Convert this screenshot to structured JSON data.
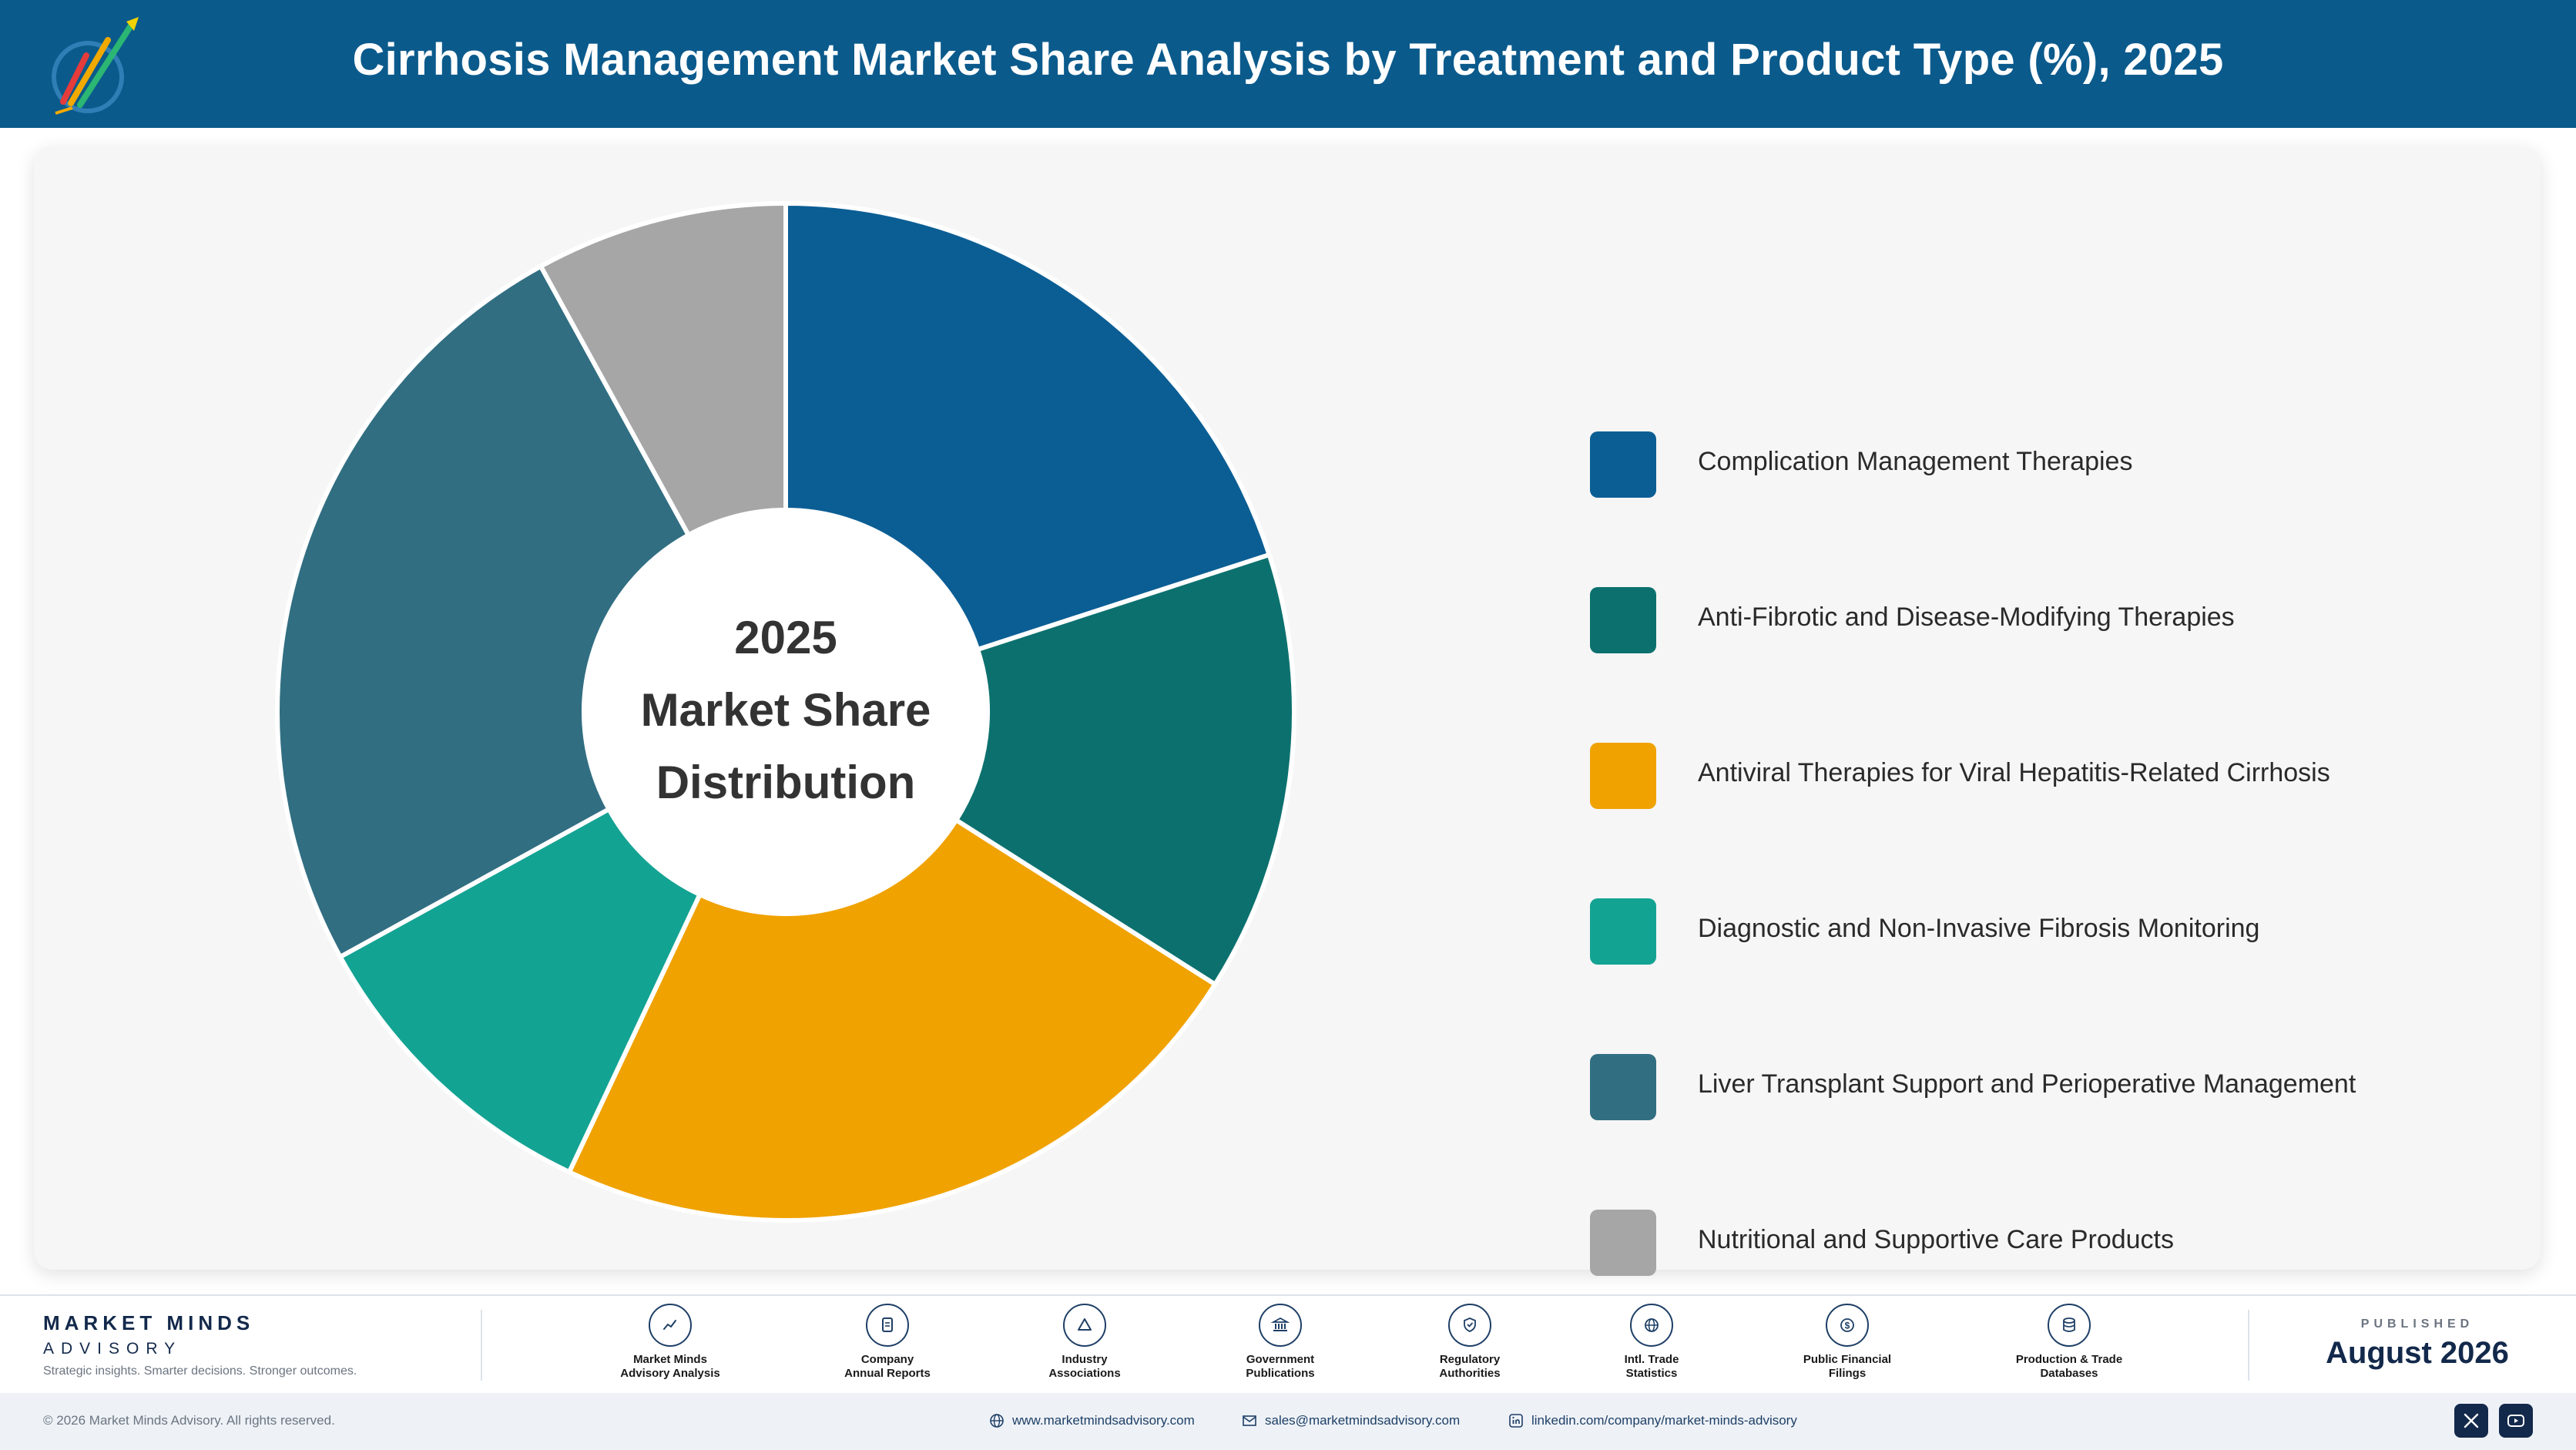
{
  "header": {
    "title": "Cirrhosis Management Market Share Analysis by Treatment and Product Type (%), 2025"
  },
  "colors": {
    "header_bg": "#0b5a8c",
    "card_bg": "#f6f6f6"
  },
  "chart_data": {
    "type": "pie",
    "center_text": [
      "2025",
      "Market Share",
      "Distribution"
    ],
    "categories": [
      "Complication Management Therapies",
      "Anti-Fibrotic and Disease-Modifying Therapies",
      "Antiviral Therapies for Viral Hepatitis-Related Cirrhosis",
      "Diagnostic and Non-Invasive Fibrosis Monitoring",
      "Liver Transplant Support and Perioperative Management",
      "Nutritional and Supportive Care Products"
    ],
    "values": [
      20,
      14,
      23,
      10,
      25,
      8
    ],
    "colors": [
      "#0b5e94",
      "#0c716e",
      "#f0a200",
      "#13a393",
      "#316e82",
      "#a6a6a6"
    ],
    "legend_position": "right"
  },
  "footer": {
    "brand_name": "MARKET MINDS",
    "brand_sub": "ADVISORY",
    "tagline": "Strategic insights. Smarter decisions. Stronger outcomes.",
    "sources": [
      {
        "icon": "trend-chart-icon",
        "line1": "Market Minds",
        "line2": "Advisory Analysis"
      },
      {
        "icon": "document-icon",
        "line1": "Company",
        "line2": "Annual Reports"
      },
      {
        "icon": "network-icon",
        "line1": "Industry",
        "line2": "Associations"
      },
      {
        "icon": "government-building-icon",
        "line1": "Government",
        "line2": "Publications"
      },
      {
        "icon": "shield-check-icon",
        "line1": "Regulatory",
        "line2": "Authorities"
      },
      {
        "icon": "globe-icon",
        "line1": "Intl. Trade",
        "line2": "Statistics"
      },
      {
        "icon": "dollar-icon",
        "line1": "Public Financial",
        "line2": "Filings"
      },
      {
        "icon": "database-icon",
        "line1": "Production & Trade",
        "line2": "Databases"
      }
    ],
    "published_label": "PUBLISHED",
    "published_date": "August 2026",
    "copyright": "© 2026 Market Minds Advisory. All rights reserved.",
    "website": "www.marketmindsadvisory.com",
    "email": "sales@marketmindsadvisory.com",
    "linkedin": "linkedin.com/company/market-minds-advisory"
  }
}
